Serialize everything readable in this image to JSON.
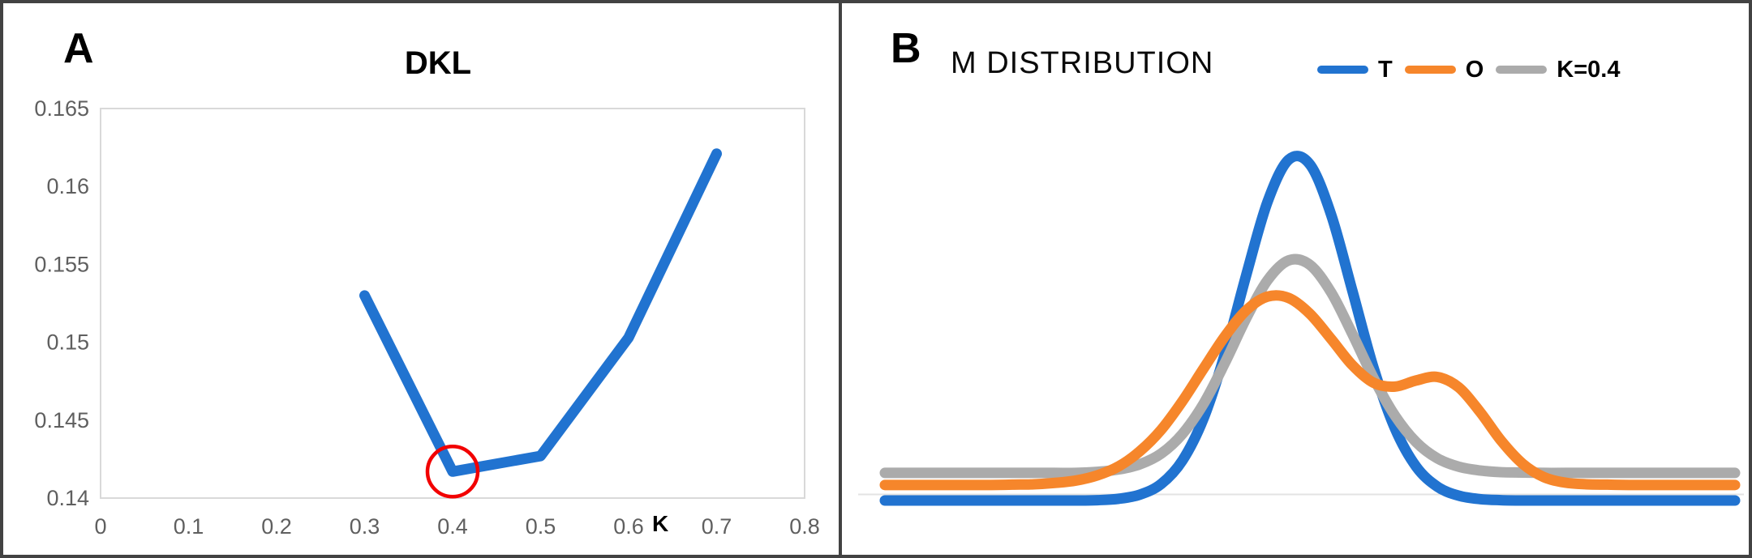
{
  "figure": {
    "panel_a": {
      "label": "A",
      "title": "DKL",
      "x_axis_title": "K"
    },
    "panel_b": {
      "label": "B",
      "title": "M DISTRIBUTION"
    }
  },
  "colors": {
    "t_blue": "#2173D0",
    "o_orange": "#F6862B",
    "k_gray": "#ABABAB",
    "highlight_red": "#F20000",
    "axis_text": "#5F5F5F",
    "frame": "#424242",
    "plot_border": "#D9D9D9",
    "baseline_line": "#E3E3E3"
  },
  "chart_data": [
    {
      "id": "dkl_vs_k",
      "type": "line",
      "title": "DKL",
      "xlabel": "K",
      "ylabel": "",
      "xlim": [
        0,
        0.8
      ],
      "ylim": [
        0.14,
        0.165
      ],
      "grid": false,
      "x_tick_labels": [
        "0",
        "0.1",
        "0.2",
        "0.3",
        "0.4",
        "0.5",
        "0.6",
        "0.7",
        "0.8"
      ],
      "y_tick_labels": [
        "0.14",
        "0.145",
        "0.15",
        "0.155",
        "0.16",
        "0.165"
      ],
      "series": [
        {
          "name": "DKL",
          "color": "#2173D0",
          "x": [
            0.3,
            0.4,
            0.5,
            0.6,
            0.7
          ],
          "y": [
            0.153,
            0.1417,
            0.1427,
            0.1503,
            0.1621
          ]
        }
      ],
      "annotations": [
        {
          "type": "circle",
          "x": 0.4,
          "y": 0.1417,
          "color": "#F20000",
          "note": "minimum DKL highlighted at K=0.4"
        }
      ]
    },
    {
      "id": "m_distribution",
      "type": "line",
      "title": "M DISTRIBUTION",
      "legend_position": "top",
      "axes_visible": false,
      "ylim": [
        0,
        1.05
      ],
      "x": [
        0,
        2.5,
        5,
        7.5,
        10,
        12.5,
        15,
        17.5,
        20,
        22.5,
        25,
        27.5,
        30,
        32.5,
        35,
        37.5,
        40,
        42.5,
        45,
        47.5,
        50,
        52.5,
        55,
        57.5,
        60,
        62.5,
        65,
        67.5,
        70,
        72.5,
        75,
        77.5,
        80,
        82.5,
        85,
        87.5,
        90,
        92.5,
        95,
        97.5,
        100
      ],
      "series": [
        {
          "name": "T",
          "color": "#2173D0",
          "values": [
            0,
            0,
            0,
            0,
            0,
            0,
            0,
            0,
            0,
            0,
            0.001,
            0.005,
            0.017,
            0.048,
            0.116,
            0.239,
            0.425,
            0.653,
            0.865,
            0.988,
            0.974,
            0.828,
            0.607,
            0.383,
            0.209,
            0.098,
            0.04,
            0.014,
            0.004,
            0.001,
            0,
            0,
            0,
            0,
            0,
            0,
            0,
            0,
            0,
            0,
            0
          ]
        },
        {
          "name": "O",
          "color": "#F6862B",
          "values": [
            0.045,
            0.045,
            0.045,
            0.045,
            0.045,
            0.045,
            0.046,
            0.047,
            0.051,
            0.058,
            0.073,
            0.099,
            0.143,
            0.205,
            0.288,
            0.383,
            0.476,
            0.551,
            0.591,
            0.587,
            0.541,
            0.468,
            0.392,
            0.341,
            0.33,
            0.348,
            0.358,
            0.328,
            0.257,
            0.173,
            0.107,
            0.068,
            0.052,
            0.047,
            0.046,
            0.045,
            0.045,
            0.045,
            0.045,
            0.045,
            0.045
          ]
        },
        {
          "name": "K=0.4",
          "color": "#ABABAB",
          "values": [
            0.08,
            0.08,
            0.08,
            0.08,
            0.08,
            0.08,
            0.08,
            0.08,
            0.08,
            0.08,
            0.083,
            0.09,
            0.105,
            0.136,
            0.193,
            0.281,
            0.399,
            0.528,
            0.638,
            0.696,
            0.683,
            0.603,
            0.482,
            0.354,
            0.246,
            0.169,
            0.122,
            0.098,
            0.087,
            0.082,
            0.081,
            0.08,
            0.08,
            0.08,
            0.08,
            0.08,
            0.08,
            0.08,
            0.08,
            0.08,
            0.08
          ]
        }
      ],
      "draw_order": [
        "T",
        "K=0.4",
        "O"
      ]
    }
  ]
}
